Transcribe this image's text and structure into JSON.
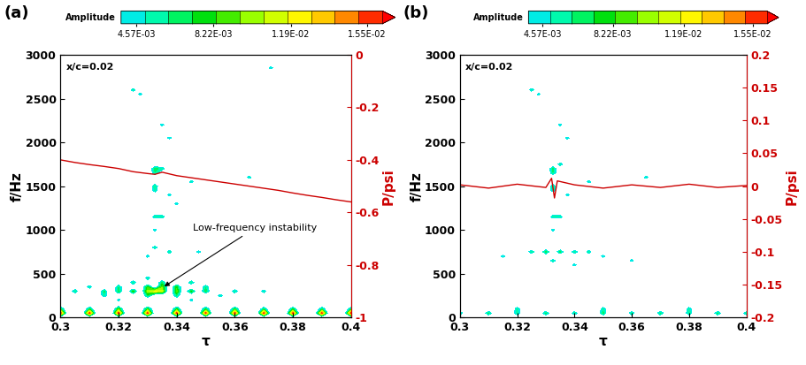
{
  "chart_data": [
    {
      "type": "heatmap",
      "panel": "(a)",
      "note": "x/c=0.02",
      "xlabel": "τ",
      "ylabel": "f/Hz",
      "y2label": "P/psi",
      "xlim": [
        0.3,
        0.4
      ],
      "xticks": [
        0.3,
        0.32,
        0.34,
        0.36,
        0.38,
        0.4
      ],
      "ylim": [
        0,
        3000
      ],
      "yticks": [
        0,
        500,
        1000,
        1500,
        2000,
        2500,
        3000
      ],
      "y2lim": [
        -1,
        0
      ],
      "y2ticks": [
        0,
        -0.2,
        -0.4,
        -0.6,
        -0.8,
        -1
      ],
      "colorbar": {
        "label": "Amplitude",
        "range": [
          0.00384,
          0.01623
        ],
        "ticks": [
          {
            "value": 0.00457,
            "label": "4.57E-03"
          },
          {
            "value": 0.00822,
            "label": "8.22E-03"
          },
          {
            "value": 0.0119,
            "label": "1.19E-02"
          },
          {
            "value": 0.0155,
            "label": "1.55E-02"
          }
        ]
      },
      "cell_step": {
        "tau": 0.0025,
        "f": 50
      },
      "cells": [
        [
          0.3325,
          1700,
          0.0065
        ],
        [
          0.3325,
          1650,
          0.006
        ],
        [
          0.335,
          1700,
          0.0055
        ],
        [
          0.3325,
          1500,
          0.006
        ],
        [
          0.3325,
          1450,
          0.0055
        ],
        [
          0.325,
          2600,
          0.0055
        ],
        [
          0.3275,
          2550,
          0.005
        ],
        [
          0.3725,
          2850,
          0.005
        ],
        [
          0.335,
          2200,
          0.005
        ],
        [
          0.3375,
          2050,
          0.005
        ],
        [
          0.3325,
          1150,
          0.0055
        ],
        [
          0.335,
          1150,
          0.0055
        ],
        [
          0.3375,
          1400,
          0.005
        ],
        [
          0.34,
          1300,
          0.005
        ],
        [
          0.345,
          1550,
          0.0052
        ],
        [
          0.365,
          1600,
          0.0052
        ],
        [
          0.3325,
          800,
          0.0055
        ],
        [
          0.3375,
          750,
          0.0055
        ],
        [
          0.33,
          700,
          0.005
        ],
        [
          0.3475,
          750,
          0.005
        ],
        [
          0.3325,
          1000,
          0.005
        ],
        [
          0.305,
          300,
          0.006
        ],
        [
          0.315,
          300,
          0.0065
        ],
        [
          0.32,
          300,
          0.007
        ],
        [
          0.325,
          300,
          0.008
        ],
        [
          0.33,
          300,
          0.01
        ],
        [
          0.3325,
          300,
          0.012
        ],
        [
          0.335,
          300,
          0.011
        ],
        [
          0.34,
          300,
          0.009
        ],
        [
          0.345,
          300,
          0.008
        ],
        [
          0.35,
          300,
          0.007
        ],
        [
          0.36,
          300,
          0.006
        ],
        [
          0.37,
          300,
          0.0055
        ],
        [
          0.31,
          350,
          0.0055
        ],
        [
          0.32,
          350,
          0.006
        ],
        [
          0.33,
          350,
          0.008
        ],
        [
          0.335,
          350,
          0.009
        ],
        [
          0.34,
          350,
          0.008
        ],
        [
          0.35,
          350,
          0.006
        ],
        [
          0.325,
          400,
          0.006
        ],
        [
          0.335,
          400,
          0.0065
        ],
        [
          0.345,
          400,
          0.006
        ],
        [
          0.315,
          250,
          0.0055
        ],
        [
          0.33,
          250,
          0.0065
        ],
        [
          0.34,
          250,
          0.006
        ],
        [
          0.355,
          250,
          0.0055
        ],
        [
          0.33,
          450,
          0.0055
        ],
        [
          0.32,
          200,
          0.005
        ],
        [
          0.345,
          200,
          0.005
        ],
        [
          0.3,
          100,
          0.007
        ],
        [
          0.31,
          100,
          0.0065
        ],
        [
          0.32,
          100,
          0.008
        ],
        [
          0.33,
          100,
          0.0075
        ],
        [
          0.34,
          100,
          0.007
        ],
        [
          0.35,
          100,
          0.0065
        ],
        [
          0.36,
          100,
          0.007
        ],
        [
          0.37,
          100,
          0.006
        ],
        [
          0.38,
          100,
          0.0065
        ],
        [
          0.39,
          100,
          0.006
        ],
        [
          0.4,
          100,
          0.006
        ],
        [
          0.3,
          50,
          0.016
        ],
        [
          0.31,
          50,
          0.016
        ],
        [
          0.32,
          50,
          0.016
        ],
        [
          0.33,
          50,
          0.016
        ],
        [
          0.34,
          50,
          0.016
        ],
        [
          0.35,
          50,
          0.016
        ],
        [
          0.36,
          50,
          0.016
        ],
        [
          0.37,
          50,
          0.016
        ],
        [
          0.38,
          50,
          0.016
        ],
        [
          0.39,
          50,
          0.016
        ],
        [
          0.4,
          50,
          0.016
        ]
      ],
      "annotations": [
        {
          "text": "Low-frequency instability",
          "x": 0.335,
          "y": 340
        }
      ],
      "pressure": {
        "axis": "y2",
        "color": "#cc0000",
        "x": [
          0.3,
          0.305,
          0.31,
          0.315,
          0.32,
          0.325,
          0.33,
          0.3325,
          0.335,
          0.34,
          0.345,
          0.35,
          0.355,
          0.36,
          0.365,
          0.37,
          0.375,
          0.38,
          0.385,
          0.39,
          0.395,
          0.4
        ],
        "values": [
          -0.4,
          -0.41,
          -0.418,
          -0.425,
          -0.433,
          -0.445,
          -0.452,
          -0.455,
          -0.447,
          -0.46,
          -0.468,
          -0.476,
          -0.484,
          -0.492,
          -0.5,
          -0.508,
          -0.516,
          -0.526,
          -0.535,
          -0.543,
          -0.552,
          -0.56
        ]
      }
    },
    {
      "type": "heatmap",
      "panel": "(b)",
      "note": "x/c=0.02",
      "xlabel": "τ",
      "ylabel": "f/Hz",
      "y2label": "P/psi",
      "xlim": [
        0.3,
        0.4
      ],
      "xticks": [
        0.3,
        0.32,
        0.34,
        0.36,
        0.38,
        0.4
      ],
      "ylim": [
        0,
        3000
      ],
      "yticks": [
        0,
        500,
        1000,
        1500,
        2000,
        2500,
        3000
      ],
      "y2lim": [
        -0.2,
        0.2
      ],
      "y2ticks": [
        -0.2,
        -0.15,
        -0.1,
        -0.05,
        0,
        0.05,
        0.1,
        0.15,
        0.2
      ],
      "colorbar": {
        "label": "Amplitude",
        "range": [
          0.00384,
          0.01623
        ],
        "ticks": [
          {
            "value": 0.00457,
            "label": "4.57E-03"
          },
          {
            "value": 0.00822,
            "label": "8.22E-03"
          },
          {
            "value": 0.0119,
            "label": "1.19E-02"
          },
          {
            "value": 0.0155,
            "label": "1.55E-02"
          }
        ]
      },
      "cell_step": {
        "tau": 0.0025,
        "f": 50
      },
      "cells": [
        [
          0.3325,
          1700,
          0.0065
        ],
        [
          0.3325,
          1650,
          0.006
        ],
        [
          0.335,
          1750,
          0.0055
        ],
        [
          0.3325,
          1500,
          0.006
        ],
        [
          0.3325,
          1450,
          0.0055
        ],
        [
          0.325,
          2600,
          0.0055
        ],
        [
          0.3275,
          2550,
          0.005
        ],
        [
          0.335,
          2200,
          0.005
        ],
        [
          0.3375,
          2050,
          0.005
        ],
        [
          0.3325,
          1150,
          0.0055
        ],
        [
          0.335,
          1150,
          0.0055
        ],
        [
          0.3375,
          1400,
          0.005
        ],
        [
          0.345,
          1550,
          0.0052
        ],
        [
          0.365,
          1600,
          0.0052
        ],
        [
          0.3325,
          1000,
          0.005
        ],
        [
          0.325,
          750,
          0.006
        ],
        [
          0.33,
          750,
          0.007
        ],
        [
          0.335,
          750,
          0.0065
        ],
        [
          0.34,
          750,
          0.006
        ],
        [
          0.345,
          750,
          0.0055
        ],
        [
          0.3325,
          650,
          0.0055
        ],
        [
          0.315,
          700,
          0.005
        ],
        [
          0.35,
          700,
          0.005
        ],
        [
          0.36,
          650,
          0.005
        ],
        [
          0.34,
          600,
          0.005
        ],
        [
          0.3,
          50,
          0.006
        ],
        [
          0.31,
          50,
          0.0065
        ],
        [
          0.32,
          50,
          0.006
        ],
        [
          0.33,
          50,
          0.0065
        ],
        [
          0.34,
          50,
          0.006
        ],
        [
          0.35,
          50,
          0.0065
        ],
        [
          0.36,
          50,
          0.006
        ],
        [
          0.37,
          50,
          0.0065
        ],
        [
          0.38,
          50,
          0.006
        ],
        [
          0.39,
          50,
          0.0065
        ],
        [
          0.4,
          50,
          0.006
        ],
        [
          0.32,
          100,
          0.0055
        ],
        [
          0.35,
          100,
          0.0055
        ],
        [
          0.38,
          100,
          0.0055
        ]
      ],
      "pressure": {
        "axis": "y2",
        "color": "#cc0000",
        "x": [
          0.3,
          0.31,
          0.32,
          0.33,
          0.332,
          0.333,
          0.334,
          0.34,
          0.35,
          0.36,
          0.37,
          0.38,
          0.39,
          0.4
        ],
        "values": [
          0.002,
          -0.003,
          0.003,
          -0.002,
          0.012,
          -0.018,
          0.008,
          0.002,
          -0.003,
          0.002,
          -0.002,
          0.003,
          -0.002,
          0.001
        ]
      }
    }
  ]
}
